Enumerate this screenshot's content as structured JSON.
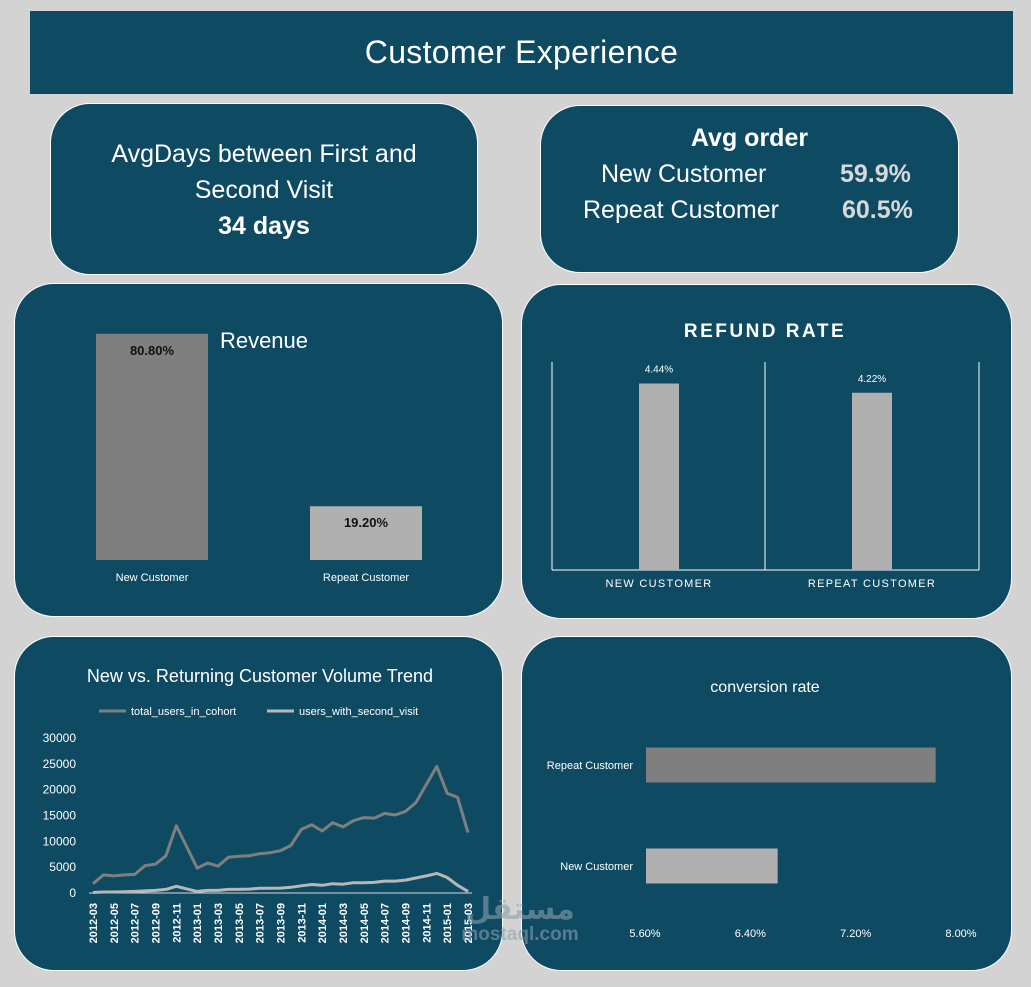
{
  "header": {
    "title": "Customer Experience"
  },
  "avg_days": {
    "line1": "AvgDays between First and",
    "line2": "Second Visit",
    "value": "34 days"
  },
  "avg_order": {
    "title": "Avg order",
    "rows": [
      {
        "label": "New Customer",
        "value": "59.9%"
      },
      {
        "label": "Repeat Customer",
        "value": "60.5%"
      }
    ]
  },
  "colors": {
    "panel": "#0f4a63",
    "page": "#d3d3d3",
    "bar_dark": "#7f7f7f",
    "bar_light": "#b0b0b0"
  },
  "watermark": {
    "arabic": "مستقل",
    "latin": "mostaql.com"
  },
  "chart_data": [
    {
      "type": "bar",
      "title": "Revenue",
      "categories": [
        "New Customer",
        "Repeat Customer"
      ],
      "values": [
        80.8,
        19.2
      ],
      "data_labels": [
        "80.80%",
        "19.20%"
      ],
      "colors": [
        "#7f7f7f",
        "#b0b0b0"
      ],
      "ylim": [
        0,
        100
      ],
      "grid": false,
      "legend": "none"
    },
    {
      "type": "bar",
      "title": "REFUND RATE",
      "categories": [
        "NEW CUSTOMER",
        "REPEAT CUSTOMER"
      ],
      "values": [
        4.44,
        4.22
      ],
      "data_labels": [
        "4.44%",
        "4.22%"
      ],
      "ylim": [
        0,
        5.0
      ],
      "grid": false,
      "legend": "none"
    },
    {
      "type": "line",
      "title": "New vs. Returning Customer Volume Trend",
      "x": [
        "2012-03",
        "2012-04",
        "2012-05",
        "2012-06",
        "2012-07",
        "2012-08",
        "2012-09",
        "2012-10",
        "2012-11",
        "2012-12",
        "2013-01",
        "2013-02",
        "2013-03",
        "2013-04",
        "2013-05",
        "2013-06",
        "2013-07",
        "2013-08",
        "2013-09",
        "2013-10",
        "2013-11",
        "2013-12",
        "2014-01",
        "2014-02",
        "2014-03",
        "2014-04",
        "2014-05",
        "2014-06",
        "2014-07",
        "2014-08",
        "2014-09",
        "2014-10",
        "2014-11",
        "2014-12",
        "2015-01",
        "2015-02",
        "2015-03"
      ],
      "x_tick_labels": [
        "2012-03",
        "2012-05",
        "2012-07",
        "2012-09",
        "2012-11",
        "2013-01",
        "2013-03",
        "2013-05",
        "2013-07",
        "2013-09",
        "2013-11",
        "2014-01",
        "2014-03",
        "2014-05",
        "2014-07",
        "2014-09",
        "2014-11",
        "2015-01",
        "2015-03"
      ],
      "series": [
        {
          "name": "total_users_in_cohort",
          "color": "#7f7f7f",
          "values": [
            1800,
            3500,
            3300,
            3500,
            3600,
            5300,
            5600,
            7200,
            13000,
            8900,
            4800,
            5800,
            5200,
            6900,
            7100,
            7200,
            7600,
            7800,
            8200,
            9200,
            12300,
            13200,
            12000,
            13600,
            12800,
            14000,
            14600,
            14500,
            15400,
            15100,
            15800,
            17500,
            21000,
            24500,
            19300,
            18500,
            11700
          ]
        },
        {
          "name": "users_with_second_visit",
          "color": "#b8b8b8",
          "values": [
            100,
            200,
            200,
            250,
            300,
            400,
            500,
            700,
            1300,
            800,
            300,
            500,
            500,
            700,
            700,
            750,
            900,
            900,
            950,
            1100,
            1400,
            1650,
            1500,
            1800,
            1700,
            2000,
            2000,
            2050,
            2300,
            2300,
            2500,
            2900,
            3300,
            3800,
            3000,
            1500,
            300
          ]
        }
      ],
      "y_ticks": [
        0,
        5000,
        10000,
        15000,
        20000,
        25000,
        30000
      ],
      "ylim": [
        0,
        30000
      ],
      "grid": false,
      "legend": "top"
    },
    {
      "type": "bar",
      "orientation": "horizontal",
      "title": "conversion rate",
      "categories": [
        "Repeat Customer",
        "New Customer"
      ],
      "values": [
        7.8,
        6.6
      ],
      "colors": [
        "#7f7f7f",
        "#b0b0b0"
      ],
      "x_ticks": [
        "5.60%",
        "6.40%",
        "7.20%",
        "8.00%"
      ],
      "xlim": [
        5.6,
        8.0
      ],
      "grid": false,
      "legend": "none"
    }
  ]
}
